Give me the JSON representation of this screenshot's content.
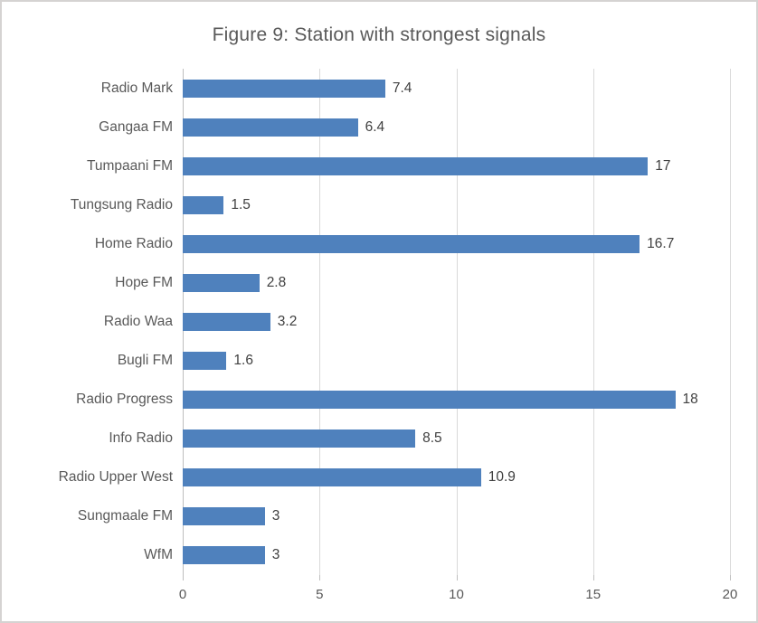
{
  "chart_data": {
    "type": "bar",
    "orientation": "horizontal",
    "title": "Figure 9: Station with strongest signals",
    "categories": [
      "Radio Mark",
      "Gangaa FM",
      "Tumpaani FM",
      "Tungsung Radio",
      "Home Radio",
      "Hope FM",
      "Radio Waa",
      "Bugli FM",
      "Radio Progress",
      "Info Radio",
      "Radio Upper West",
      "Sungmaale FM",
      "WfM"
    ],
    "values": [
      7.4,
      6.4,
      17,
      1.5,
      16.7,
      2.8,
      3.2,
      1.6,
      18,
      8.5,
      10.9,
      3,
      3
    ],
    "data_labels": [
      "7.4",
      "6.4",
      "17",
      "1.5",
      "16.7",
      "2.8",
      "3.2",
      "1.6",
      "18",
      "8.5",
      "10.9",
      "3",
      "3"
    ],
    "xlabel": "",
    "ylabel": "",
    "xlim": [
      0,
      20
    ],
    "x_ticks": [
      0,
      5,
      10,
      15,
      20
    ],
    "grid": true,
    "legend": false,
    "colors": {
      "bar": "#4F81BD",
      "title": "#595959",
      "axis_labels": "#595959",
      "data_labels": "#404040",
      "gridline": "#D9D9D9",
      "axis_line": "#BFBFBF",
      "border": "#D5D3D2",
      "background": "#FFFFFF"
    }
  }
}
